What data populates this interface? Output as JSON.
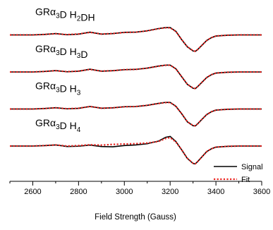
{
  "chart_data": {
    "type": "line",
    "title": "",
    "xlabel": "Field Strength (Gauss)",
    "ylabel": "",
    "xlim": [
      2500,
      3600
    ],
    "x_ticks": [
      2600,
      2800,
      3000,
      3200,
      3400,
      3600
    ],
    "y_axis_shown": false,
    "grid": false,
    "legend": {
      "placement": "bottom-right",
      "entries": [
        {
          "label": "Signal",
          "color": "#000000",
          "style": "solid"
        },
        {
          "label": "Fit",
          "color": "#e8231f",
          "style": "dotted"
        }
      ]
    },
    "traces": [
      {
        "label_parts": [
          "GRα",
          "3",
          "D H",
          "2",
          "DH"
        ],
        "offset": 3,
        "signal": {
          "x": [
            2500,
            2600,
            2650,
            2700,
            2750,
            2800,
            2850,
            2900,
            2950,
            3000,
            3050,
            3100,
            3150,
            3180,
            3200,
            3225,
            3250,
            3275,
            3300,
            3310,
            3320,
            3340,
            3360,
            3380,
            3400,
            3450,
            3500,
            3600
          ],
          "y": [
            0,
            0,
            0.05,
            0.15,
            0.02,
            0.08,
            0.3,
            0.08,
            0.15,
            0.28,
            0.3,
            0.45,
            0.7,
            0.8,
            0.8,
            0.4,
            -0.5,
            -1.3,
            -1.75,
            -1.8,
            -1.6,
            -1.1,
            -0.6,
            -0.3,
            -0.12,
            -0.03,
            0,
            0
          ]
        },
        "fit": {
          "x": [
            2500,
            2600,
            2650,
            2700,
            2750,
            2800,
            2850,
            2900,
            2950,
            3000,
            3050,
            3100,
            3150,
            3180,
            3200,
            3225,
            3250,
            3275,
            3300,
            3310,
            3320,
            3340,
            3360,
            3380,
            3400,
            3450,
            3500,
            3600
          ],
          "y": [
            0,
            0,
            0.05,
            0.13,
            0.03,
            0.1,
            0.28,
            0.1,
            0.15,
            0.27,
            0.3,
            0.44,
            0.68,
            0.78,
            0.78,
            0.38,
            -0.5,
            -1.28,
            -1.72,
            -1.78,
            -1.6,
            -1.1,
            -0.6,
            -0.3,
            -0.12,
            -0.03,
            0,
            0
          ]
        }
      },
      {
        "label_parts": [
          "GRα",
          "3",
          "D H",
          "3",
          "D"
        ],
        "offset": 2,
        "signal": {
          "x": [
            2500,
            2600,
            2650,
            2700,
            2750,
            2800,
            2850,
            2900,
            2950,
            3000,
            3050,
            3100,
            3150,
            3180,
            3200,
            3225,
            3250,
            3275,
            3300,
            3310,
            3320,
            3340,
            3360,
            3380,
            3400,
            3450,
            3500,
            3600
          ],
          "y": [
            0,
            0,
            0.05,
            0.15,
            0.02,
            0.08,
            0.3,
            0.08,
            0.14,
            0.25,
            0.28,
            0.42,
            0.65,
            0.75,
            0.75,
            0.35,
            -0.5,
            -1.35,
            -1.78,
            -1.82,
            -1.6,
            -1.1,
            -0.6,
            -0.3,
            -0.12,
            -0.03,
            0,
            0
          ]
        },
        "fit": {
          "x": [
            2500,
            2600,
            2650,
            2700,
            2750,
            2800,
            2850,
            2900,
            2950,
            3000,
            3050,
            3100,
            3150,
            3180,
            3200,
            3225,
            3250,
            3275,
            3300,
            3310,
            3320,
            3340,
            3360,
            3380,
            3400,
            3450,
            3500,
            3600
          ],
          "y": [
            0,
            0,
            0.05,
            0.14,
            0.03,
            0.09,
            0.28,
            0.09,
            0.14,
            0.25,
            0.28,
            0.42,
            0.63,
            0.73,
            0.74,
            0.34,
            -0.5,
            -1.33,
            -1.76,
            -1.8,
            -1.6,
            -1.1,
            -0.6,
            -0.3,
            -0.12,
            -0.03,
            0,
            0
          ]
        }
      },
      {
        "label_parts": [
          "GRα",
          "3",
          "D H",
          "3",
          ""
        ],
        "offset": 1,
        "signal": {
          "x": [
            2500,
            2600,
            2650,
            2700,
            2750,
            2800,
            2850,
            2900,
            2950,
            3000,
            3050,
            3100,
            3150,
            3180,
            3200,
            3225,
            3250,
            3275,
            3300,
            3310,
            3320,
            3340,
            3360,
            3380,
            3400,
            3450,
            3500,
            3600
          ],
          "y": [
            0,
            0,
            0.05,
            0.14,
            0.02,
            0.07,
            0.28,
            0.08,
            0.13,
            0.25,
            0.27,
            0.4,
            0.62,
            0.72,
            0.72,
            0.3,
            -0.5,
            -1.4,
            -1.82,
            -1.85,
            -1.62,
            -1.1,
            -0.6,
            -0.3,
            -0.12,
            -0.03,
            0,
            0
          ]
        },
        "fit": {
          "x": [
            2500,
            2600,
            2650,
            2700,
            2750,
            2800,
            2850,
            2900,
            2950,
            3000,
            3050,
            3100,
            3150,
            3180,
            3200,
            3225,
            3250,
            3275,
            3300,
            3310,
            3320,
            3340,
            3360,
            3380,
            3400,
            3450,
            3500,
            3600
          ],
          "y": [
            0,
            0,
            0.05,
            0.13,
            0.03,
            0.08,
            0.27,
            0.09,
            0.13,
            0.24,
            0.27,
            0.4,
            0.6,
            0.7,
            0.71,
            0.3,
            -0.5,
            -1.38,
            -1.8,
            -1.83,
            -1.62,
            -1.1,
            -0.6,
            -0.3,
            -0.12,
            -0.03,
            0,
            0
          ]
        }
      },
      {
        "label_parts": [
          "GRα",
          "3",
          "D H",
          "4",
          ""
        ],
        "offset": 0,
        "signal": {
          "x": [
            2500,
            2600,
            2650,
            2700,
            2750,
            2800,
            2850,
            2900,
            2950,
            3000,
            3050,
            3100,
            3150,
            3180,
            3200,
            3225,
            3250,
            3275,
            3300,
            3310,
            3320,
            3340,
            3360,
            3380,
            3400,
            3450,
            3500,
            3600
          ],
          "y": [
            0,
            0,
            0.04,
            0.12,
            -0.05,
            -0.02,
            0.1,
            -0.05,
            -0.08,
            0.05,
            0.12,
            0.25,
            0.55,
            0.95,
            1.05,
            0.5,
            -0.4,
            -1.35,
            -1.9,
            -1.95,
            -1.7,
            -1.15,
            -0.6,
            -0.3,
            -0.12,
            -0.03,
            0,
            0
          ]
        },
        "fit": {
          "x": [
            2500,
            2600,
            2650,
            2700,
            2750,
            2800,
            2850,
            2900,
            2950,
            3000,
            3050,
            3100,
            3150,
            3180,
            3200,
            3225,
            3250,
            3275,
            3300,
            3310,
            3320,
            3340,
            3360,
            3380,
            3400,
            3450,
            3500,
            3600
          ],
          "y": [
            0,
            0,
            0.05,
            0.12,
            0.0,
            0.05,
            0.14,
            0.1,
            0.18,
            0.22,
            0.26,
            0.33,
            0.5,
            0.82,
            0.92,
            0.45,
            -0.4,
            -1.33,
            -1.88,
            -1.93,
            -1.7,
            -1.15,
            -0.6,
            -0.3,
            -0.12,
            -0.03,
            0,
            0
          ]
        }
      }
    ]
  }
}
